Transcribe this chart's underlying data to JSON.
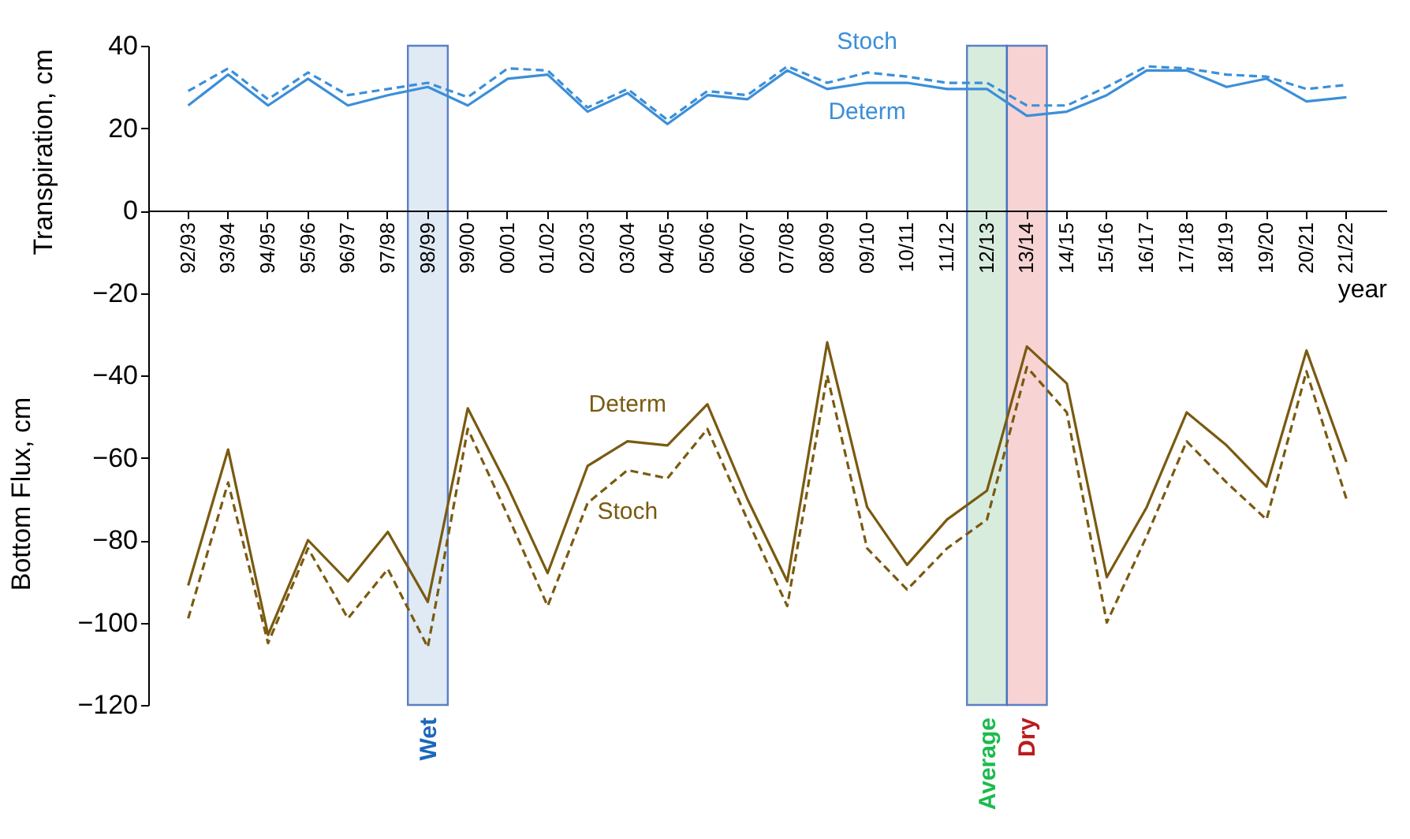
{
  "chart_data": {
    "type": "line",
    "xlabel": "year",
    "ylabel": "Transpiration, cm",
    "annotations": [
      "Bottom Flux, cm"
    ],
    "categories": [
      "92/93",
      "93/94",
      "94/95",
      "95/96",
      "96/97",
      "97/98",
      "98/99",
      "99/00",
      "00/01",
      "01/02",
      "02/03",
      "03/04",
      "04/05",
      "05/06",
      "06/07",
      "07/08",
      "08/09",
      "09/10",
      "10/11",
      "11/12",
      "12/13",
      "13/14",
      "14/15",
      "15/16",
      "16/17",
      "17/18",
      "18/19",
      "19/20",
      "20/21",
      "21/22"
    ],
    "series": [
      {
        "name": "Stoch",
        "color": "#3b8fd9",
        "line_style": "dashed",
        "values": [
          29,
          34.5,
          27,
          33.5,
          28,
          29.5,
          31,
          27.5,
          34.5,
          34,
          25,
          29.5,
          22,
          29,
          28,
          35,
          31,
          33.5,
          32.5,
          31,
          31,
          25.5,
          25.5,
          30,
          35,
          34.5,
          33,
          32.5,
          29.5,
          30.5
        ]
      },
      {
        "name": "Determ",
        "color": "#3b8fd9",
        "line_style": "solid",
        "values": [
          25.5,
          33,
          25.5,
          32,
          25.5,
          28,
          30,
          25.5,
          32,
          33,
          24,
          28.5,
          21,
          28,
          27,
          34,
          29.5,
          31,
          31,
          29.5,
          29.5,
          23,
          24,
          28,
          34,
          34,
          30,
          32,
          26.5,
          27.5
        ]
      },
      {
        "name": "Determ",
        "color": "#7a5a10",
        "line_style": "solid",
        "values": [
          -91,
          -58,
          -103,
          -80,
          -90,
          -78,
          -95,
          -48,
          -67,
          -88,
          -62,
          -56,
          -57,
          -47,
          -70,
          -90,
          -32,
          -72,
          -86,
          -75,
          -68,
          -33,
          -42,
          -89,
          -72,
          -49,
          -57,
          -67,
          -34,
          -61
        ]
      },
      {
        "name": "Stoch",
        "color": "#7a5a10",
        "line_style": "dashed",
        "values": [
          -99,
          -66,
          -105,
          -82,
          -99,
          -87,
          -106,
          -53,
          -74,
          -96,
          -71,
          -63,
          -65,
          -53,
          -75,
          -96,
          -40,
          -82,
          -92,
          -82,
          -75,
          -38,
          -49,
          -100,
          -79,
          -56,
          -66,
          -75,
          -39,
          -70
        ]
      }
    ],
    "bands": [
      {
        "axis": "x",
        "from": "98/99",
        "to": "98/99",
        "label": "Wet",
        "color": "#dce8f5"
      },
      {
        "axis": "x",
        "from": "12/13",
        "to": "12/13",
        "label": "Average",
        "color": "#d4eadb"
      },
      {
        "axis": "x",
        "from": "13/14",
        "to": "13/14",
        "label": "Dry",
        "color": "#f7cfd0"
      }
    ],
    "ylim": [
      -120,
      40
    ],
    "yticks": [
      -120,
      -100,
      -80,
      -60,
      -40,
      -20,
      0,
      20,
      40
    ],
    "grid": false,
    "marker": "none"
  }
}
